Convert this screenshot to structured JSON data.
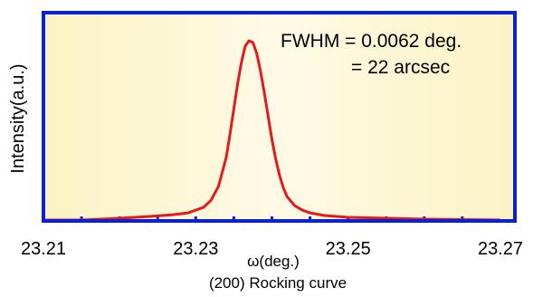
{
  "chart_data": {
    "type": "line",
    "title": "(200) Rocking curve",
    "xlabel": "ω(deg.)",
    "ylabel": "Intensity(a.u.)",
    "xlim": [
      23.21,
      23.27
    ],
    "ylim": [
      0,
      1.05
    ],
    "x_ticks": [
      "23.21",
      "23.23",
      "23.25",
      "23.27"
    ],
    "grid": false,
    "annotation": [
      "FWHM = 0.0062 deg.",
      "= 22 arcsec"
    ],
    "colors": {
      "line": "#e31b1b",
      "frame": "#0a1fd6",
      "plot_background": "#fdf8d6"
    },
    "series": [
      {
        "x": [
          23.21,
          23.215,
          23.22,
          23.224,
          23.227,
          23.229,
          23.231,
          23.232,
          23.233,
          23.234,
          23.2345,
          23.235,
          23.2355,
          23.236,
          23.2365,
          23.237,
          23.2375,
          23.238,
          23.2385,
          23.239,
          23.2395,
          23.24,
          23.2405,
          23.241,
          23.2415,
          23.242,
          23.243,
          23.244,
          23.245,
          23.247,
          23.25,
          23.255,
          23.26,
          23.27
        ],
        "y": [
          0.0,
          0.0,
          0.01,
          0.02,
          0.03,
          0.04,
          0.07,
          0.11,
          0.19,
          0.35,
          0.48,
          0.62,
          0.76,
          0.88,
          0.97,
          1.0,
          0.99,
          0.93,
          0.83,
          0.71,
          0.58,
          0.45,
          0.34,
          0.25,
          0.18,
          0.13,
          0.08,
          0.055,
          0.04,
          0.025,
          0.015,
          0.01,
          0.005,
          0.0
        ]
      }
    ]
  }
}
